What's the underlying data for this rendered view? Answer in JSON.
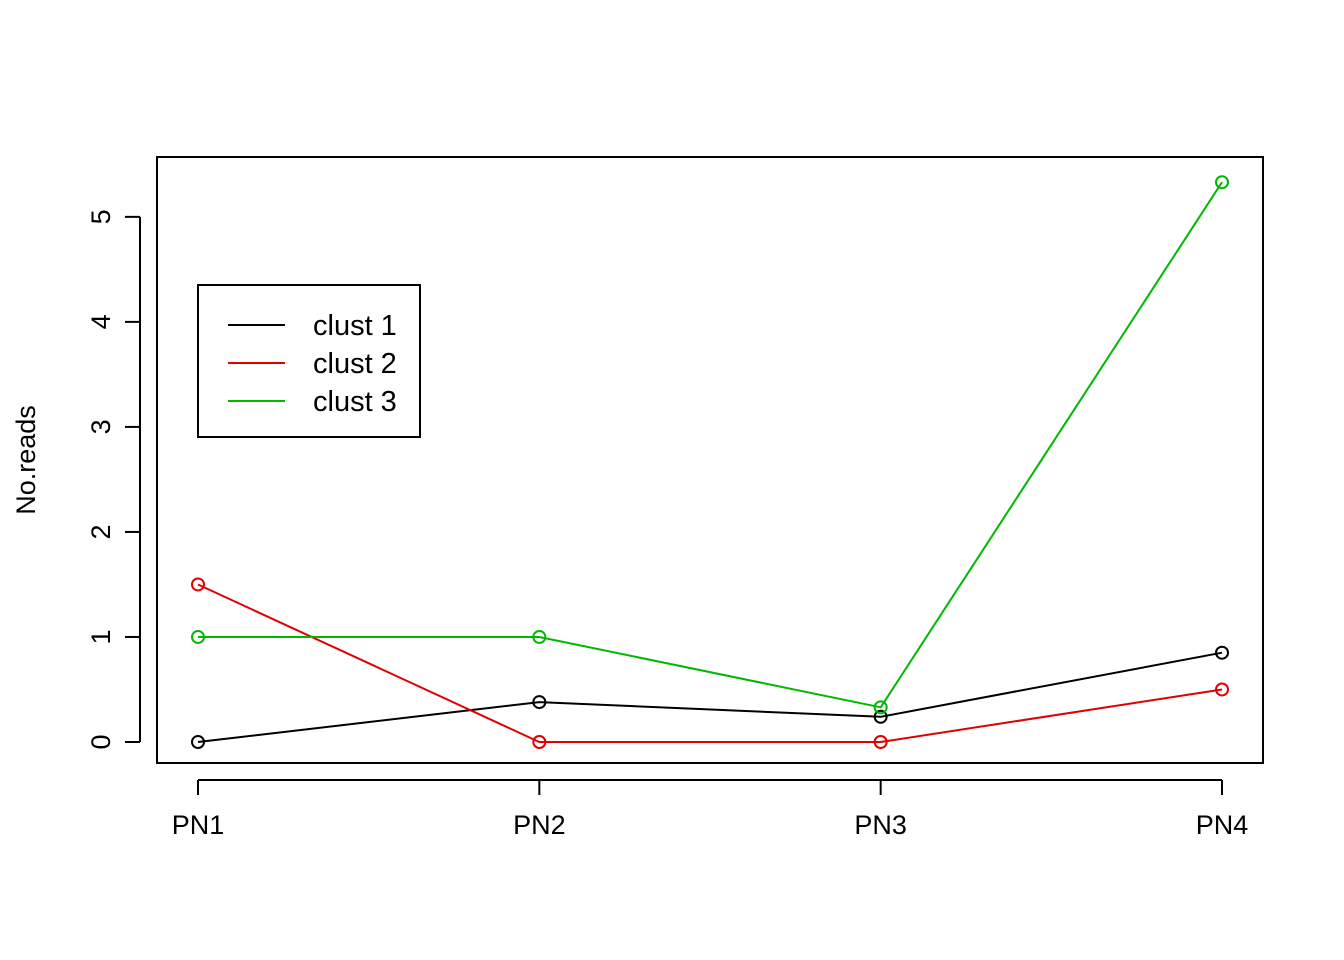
{
  "chart_data": {
    "type": "line",
    "title": "",
    "xlabel": "",
    "ylabel": "No.reads",
    "categories": [
      "PN1",
      "PN2",
      "PN3",
      "PN4"
    ],
    "ylim": [
      -0.2,
      5.57
    ],
    "yticks": [
      0,
      1,
      2,
      3,
      4,
      5
    ],
    "grid": false,
    "legend_position": "top-left",
    "markers": "open-circle",
    "series": [
      {
        "name": "clust 1",
        "color": "#000000",
        "values": [
          0,
          0.38,
          0.24,
          0.85
        ]
      },
      {
        "name": "clust 2",
        "color": "#DF0000",
        "values": [
          1.5,
          0,
          0,
          0.5
        ]
      },
      {
        "name": "clust 3",
        "color": "#00B800",
        "values": [
          1.0,
          1.0,
          0.33,
          5.33
        ]
      }
    ]
  }
}
